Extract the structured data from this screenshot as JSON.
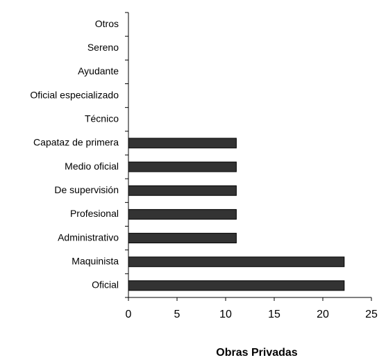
{
  "chart_data": {
    "type": "barh",
    "xlabel": "Obras Privadas",
    "categories": [
      "Otros",
      "Sereno",
      "Ayudante",
      "Oficial especializado",
      "Técnico",
      "Capataz de primera",
      "Medio oficial",
      "De supervisión",
      "Profesional",
      "Administrativo",
      "Maquinista",
      "Oficial"
    ],
    "values": [
      0,
      0,
      0,
      0,
      0,
      11.1,
      11.1,
      11.1,
      11.1,
      11.1,
      22.2,
      22.2
    ],
    "color": "#333333",
    "xlim": [
      0,
      25
    ],
    "xticks": [
      0,
      5,
      10,
      15,
      20,
      25
    ],
    "grid": false
  }
}
